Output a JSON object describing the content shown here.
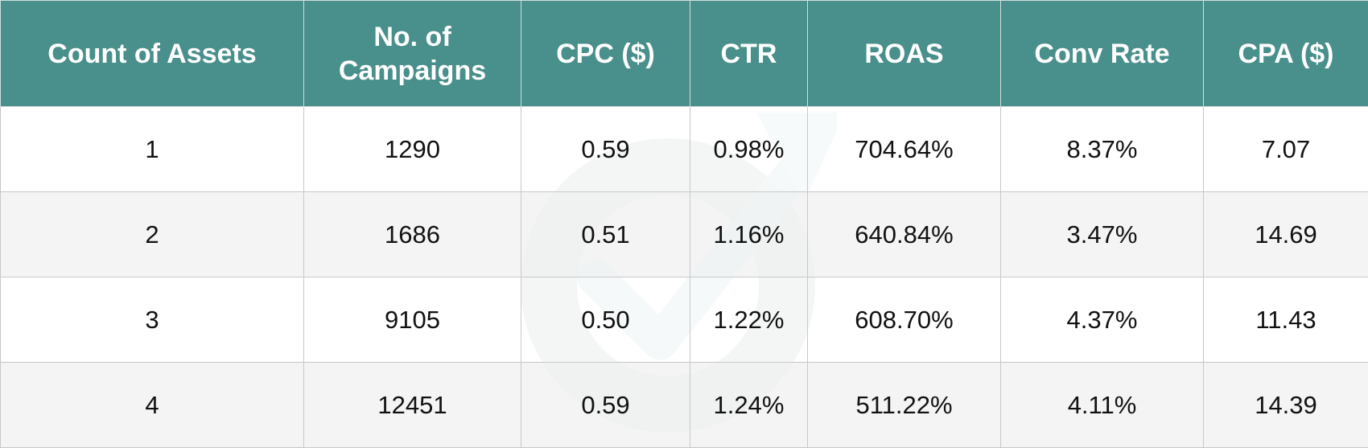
{
  "table": {
    "headers": [
      "Count of Assets",
      "No. of Campaigns",
      "CPC ($)",
      "CTR",
      "ROAS",
      "Conv Rate",
      "CPA ($)"
    ],
    "rows": [
      [
        "1",
        "1290",
        "0.59",
        "0.98%",
        "704.64%",
        "8.37%",
        "7.07"
      ],
      [
        "2",
        "1686",
        "0.51",
        "1.16%",
        "640.84%",
        "3.47%",
        "14.69"
      ],
      [
        "3",
        "9105",
        "0.50",
        "1.22%",
        "608.70%",
        "4.37%",
        "11.43"
      ],
      [
        "4",
        "12451",
        "0.59",
        "1.24%",
        "511.22%",
        "4.11%",
        "14.39"
      ]
    ]
  },
  "colors": {
    "header_bg": "#498f8b",
    "header_text": "#ffffff",
    "row_even_bg": "#f4f4f4",
    "border": "#c8c8c8",
    "watermark": "#e4e8e8"
  },
  "watermark_icon": "circular-arrow-checkmark-icon"
}
